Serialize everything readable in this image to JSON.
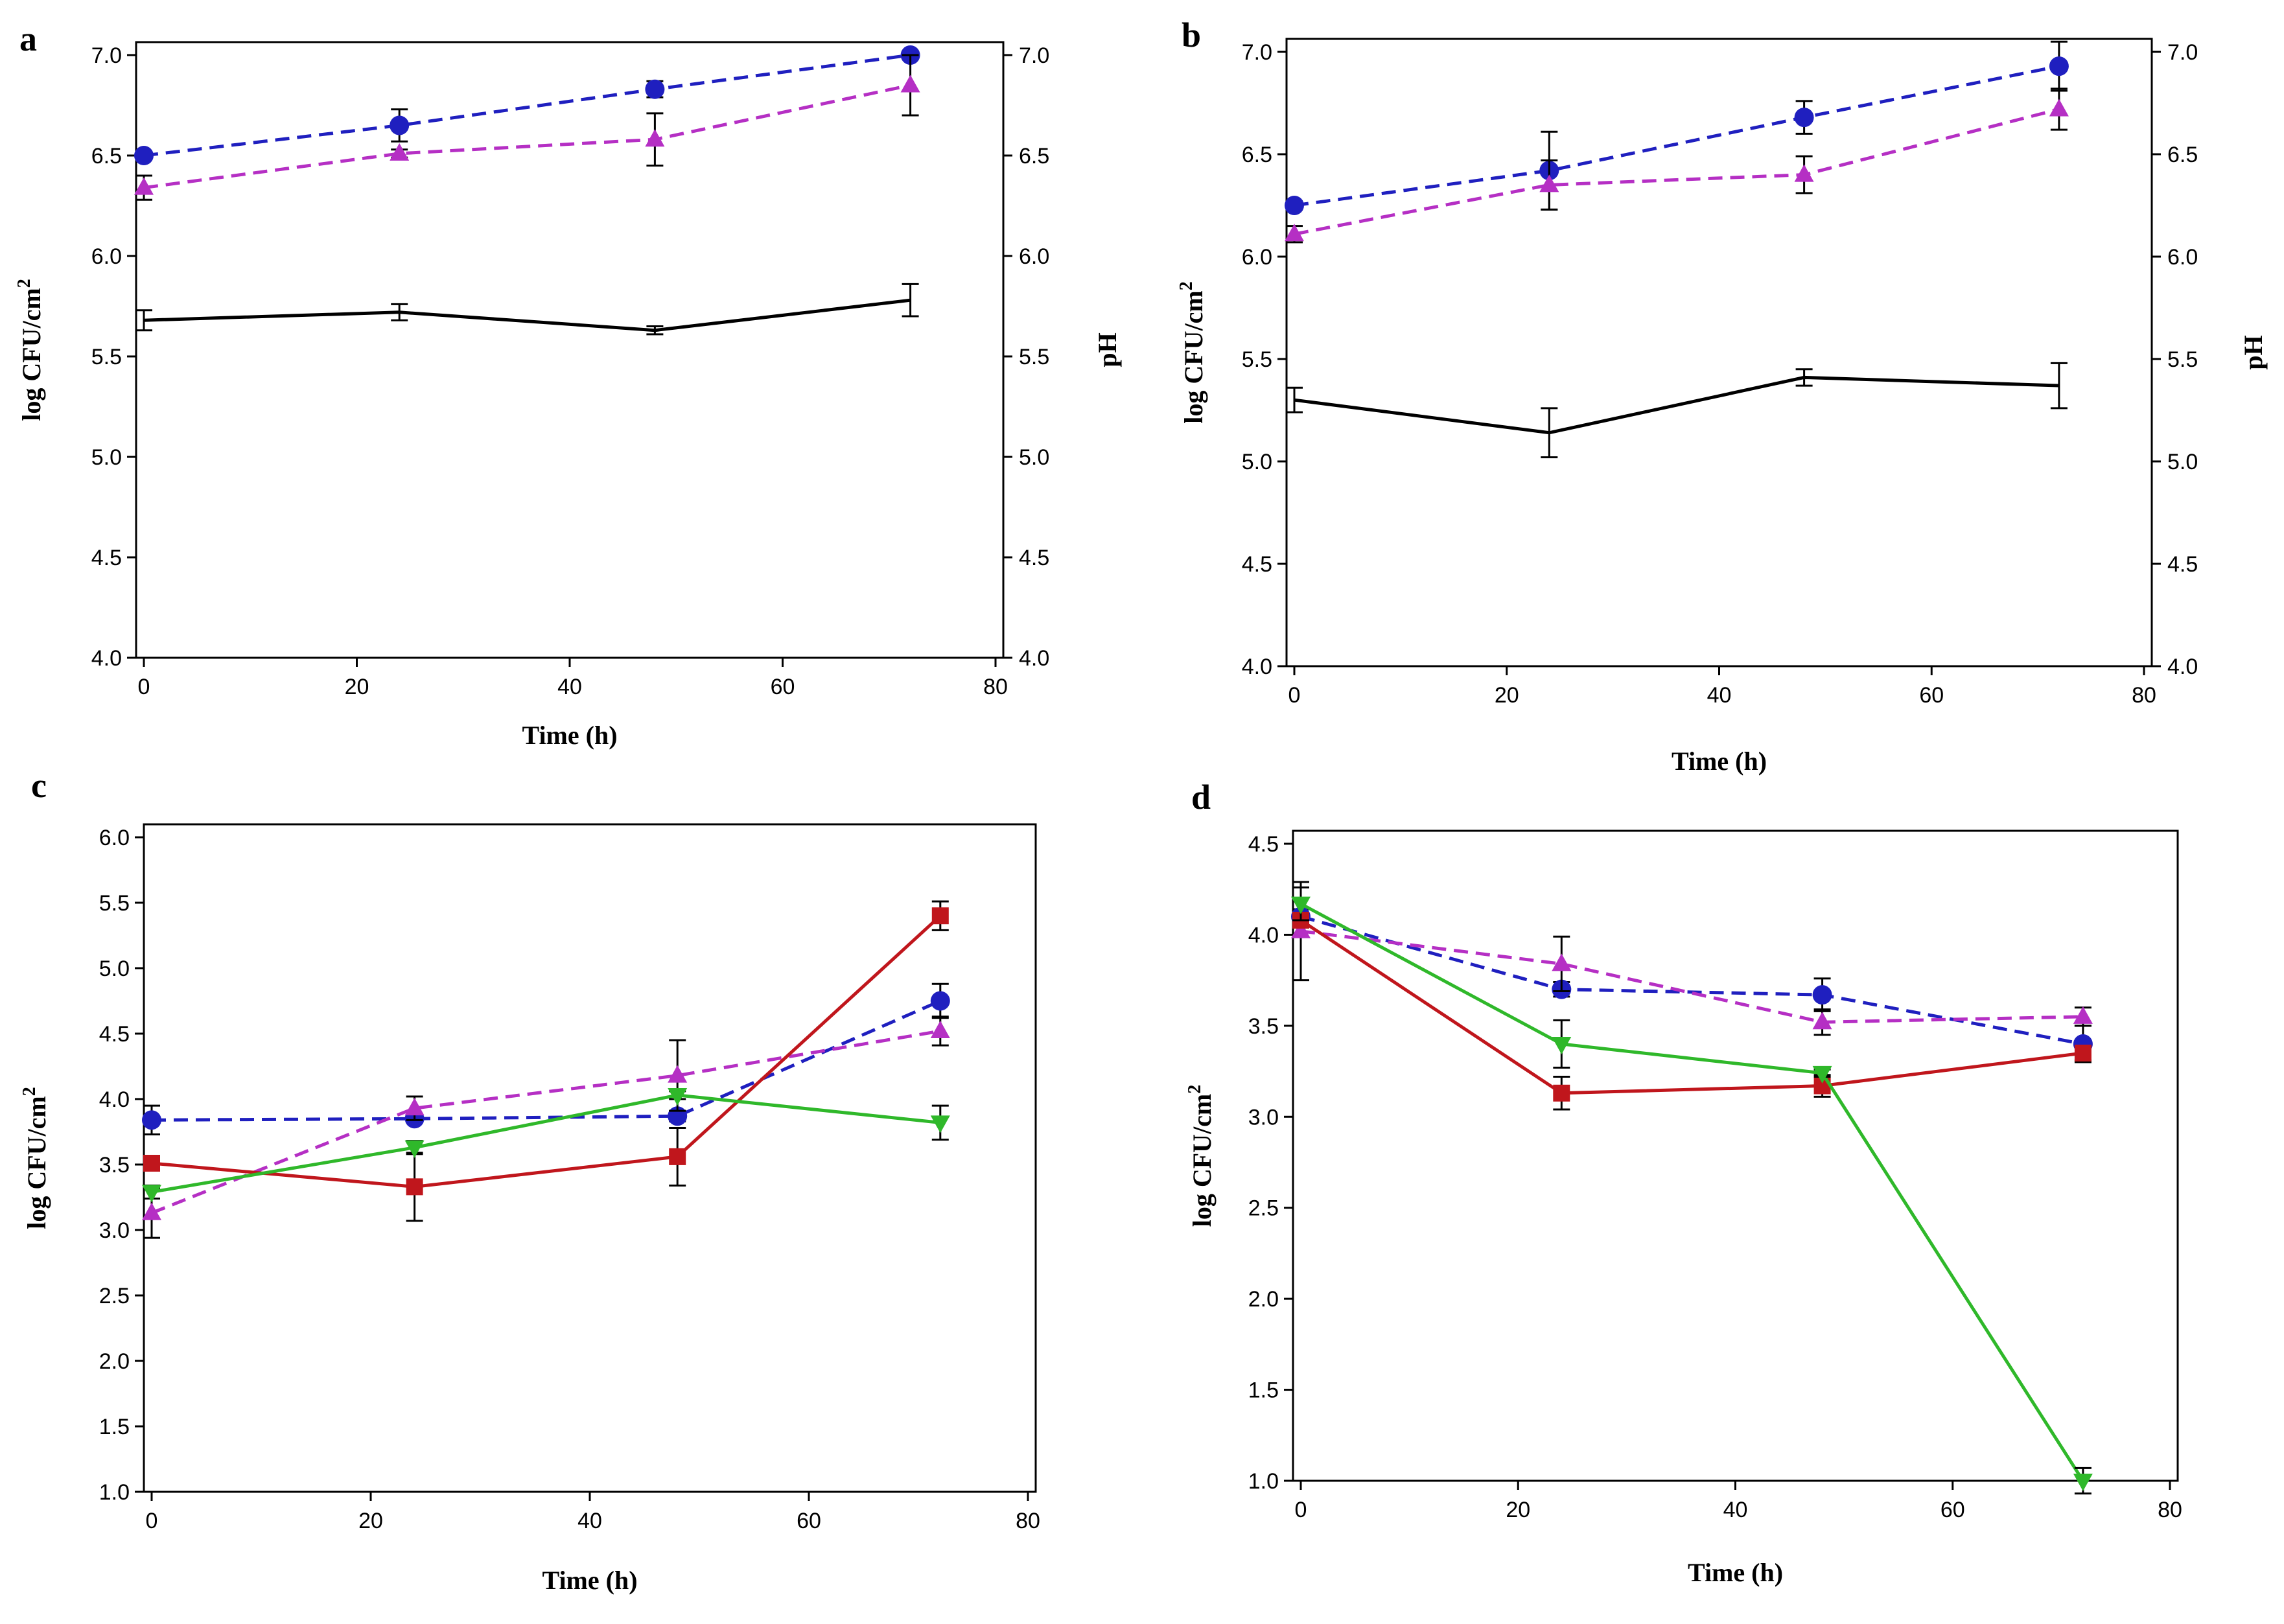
{
  "chart_data": [
    {
      "type": "line",
      "panel_label": "a",
      "xlabel": "Time (h)",
      "ylabel": "log CFU/cm²",
      "ylabel_base": "log CFU/cm",
      "ylabel_sup": "2",
      "y2label": "pH",
      "xlim": [
        0,
        80
      ],
      "ylim": [
        4.0,
        7.0
      ],
      "y2lim": [
        4.0,
        7.0
      ],
      "xticks": [
        "0",
        "20",
        "40",
        "60",
        "80"
      ],
      "yticks": [
        "4.0",
        "4.5",
        "5.0",
        "5.5",
        "6.0",
        "6.5",
        "7.0"
      ],
      "y2ticks": [
        "4.0",
        "4.5",
        "5.0",
        "5.5",
        "6.0",
        "6.5",
        "7.0"
      ],
      "x": [
        0,
        24,
        48,
        72
      ],
      "series": [
        {
          "name": "circle-series",
          "color": "#1f1fbf",
          "dash": "dashed",
          "marker": "circle",
          "values": [
            6.5,
            6.65,
            6.83,
            7.0
          ],
          "errors": [
            0.02,
            0.08,
            0.04,
            0.02
          ]
        },
        {
          "name": "triangle-series",
          "color": "#b52fc4",
          "dash": "dashed",
          "marker": "triangle-up",
          "values": [
            6.34,
            6.51,
            6.58,
            6.85
          ],
          "errors": [
            0.06,
            0.02,
            0.13,
            0.15
          ]
        },
        {
          "name": "pH",
          "color": "#000000",
          "dash": "solid",
          "marker": "none",
          "values": [
            5.68,
            5.72,
            5.63,
            5.78
          ],
          "errors": [
            0.05,
            0.04,
            0.02,
            0.08
          ]
        }
      ]
    },
    {
      "type": "line",
      "panel_label": "b",
      "xlabel": "Time (h)",
      "ylabel": "log CFU/cm²",
      "ylabel_base": "log CFU/cm",
      "ylabel_sup": "2",
      "y2label": "pH",
      "xlim": [
        0,
        80
      ],
      "ylim": [
        4.0,
        7.0
      ],
      "y2lim": [
        4.0,
        7.0
      ],
      "xticks": [
        "0",
        "20",
        "40",
        "60",
        "80"
      ],
      "yticks": [
        "4.0",
        "4.5",
        "5.0",
        "5.5",
        "6.0",
        "6.5",
        "7.0"
      ],
      "y2ticks": [
        "4.0",
        "4.5",
        "5.0",
        "5.5",
        "6.0",
        "6.5",
        "7.0"
      ],
      "x": [
        0,
        24,
        48,
        72
      ],
      "series": [
        {
          "name": "circle-series",
          "color": "#1f1fbf",
          "dash": "dashed",
          "marker": "circle",
          "values": [
            6.25,
            6.42,
            6.68,
            6.93
          ],
          "errors": [
            0.02,
            0.19,
            0.08,
            0.12
          ]
        },
        {
          "name": "triangle-series",
          "color": "#b52fc4",
          "dash": "dashed",
          "marker": "triangle-up",
          "values": [
            6.11,
            6.35,
            6.4,
            6.72
          ],
          "errors": [
            0.04,
            0.12,
            0.09,
            0.1
          ]
        },
        {
          "name": "pH",
          "color": "#000000",
          "dash": "solid",
          "marker": "none",
          "values": [
            5.3,
            5.14,
            5.41,
            5.37
          ],
          "errors": [
            0.06,
            0.12,
            0.04,
            0.11
          ]
        }
      ]
    },
    {
      "type": "line",
      "panel_label": "c",
      "xlabel": "Time (h)",
      "ylabel": "log CFU/cm²",
      "ylabel_base": "log CFU/cm",
      "ylabel_sup": "2",
      "xlim": [
        0,
        80
      ],
      "ylim": [
        1.0,
        6.0
      ],
      "xticks": [
        "0",
        "20",
        "40",
        "60",
        "80"
      ],
      "yticks": [
        "1.0",
        "1.5",
        "2.0",
        "2.5",
        "3.0",
        "3.5",
        "4.0",
        "4.5",
        "5.0",
        "5.5",
        "6.0"
      ],
      "x": [
        0,
        24,
        48,
        72
      ],
      "series": [
        {
          "name": "circle-series",
          "color": "#1f1fbf",
          "dash": "dashed",
          "marker": "circle",
          "values": [
            3.84,
            3.85,
            3.87,
            4.75
          ],
          "errors": [
            0.11,
            0.03,
            0.04,
            0.13
          ]
        },
        {
          "name": "triangle-series",
          "color": "#b52fc4",
          "dash": "dashed",
          "marker": "triangle-up",
          "values": [
            3.13,
            3.93,
            4.18,
            4.52
          ],
          "errors": [
            0.19,
            0.09,
            0.27,
            0.11
          ]
        },
        {
          "name": "square-series",
          "color": "#c0161c",
          "dash": "solid",
          "marker": "square",
          "values": [
            3.51,
            3.33,
            3.56,
            5.4
          ],
          "errors": [
            0.05,
            0.26,
            0.22,
            0.11
          ]
        },
        {
          "name": "inverted-triangle-series",
          "color": "#2fb82a",
          "dash": "solid",
          "marker": "triangle-down",
          "values": [
            3.29,
            3.63,
            4.03,
            3.82
          ],
          "errors": [
            0.05,
            0.05,
            0.03,
            0.13
          ]
        }
      ]
    },
    {
      "type": "line",
      "panel_label": "d",
      "xlabel": "Time (h)",
      "ylabel": "log CFU/cm²",
      "ylabel_base": "log CFU/cm",
      "ylabel_sup": "2",
      "xlim": [
        0,
        80
      ],
      "ylim": [
        1.0,
        4.5
      ],
      "xticks": [
        "0",
        "20",
        "40",
        "60",
        "80"
      ],
      "yticks": [
        "1.0",
        "1.5",
        "2.0",
        "2.5",
        "3.0",
        "3.5",
        "4.0",
        "4.5"
      ],
      "x": [
        0,
        24,
        48,
        72
      ],
      "series": [
        {
          "name": "circle-series",
          "color": "#1f1fbf",
          "dash": "dashed",
          "marker": "circle",
          "values": [
            4.1,
            3.7,
            3.67,
            3.4
          ],
          "errors": [
            0.04,
            0.04,
            0.09,
            0.1
          ]
        },
        {
          "name": "triangle-series",
          "color": "#b52fc4",
          "dash": "dashed",
          "marker": "triangle-up",
          "values": [
            4.02,
            3.84,
            3.52,
            3.55
          ],
          "errors": [
            0.27,
            0.15,
            0.07,
            0.05
          ]
        },
        {
          "name": "square-series",
          "color": "#c0161c",
          "dash": "solid",
          "marker": "square",
          "values": [
            4.08,
            3.13,
            3.17,
            3.35
          ],
          "errors": [
            0.02,
            0.09,
            0.06,
            0.04
          ]
        },
        {
          "name": "inverted-triangle-series",
          "color": "#2fb82a",
          "dash": "solid",
          "marker": "triangle-down",
          "values": [
            4.17,
            3.4,
            3.24,
            1.0
          ],
          "errors": [
            0.09,
            0.13,
            0.02,
            0.07
          ]
        }
      ]
    }
  ]
}
